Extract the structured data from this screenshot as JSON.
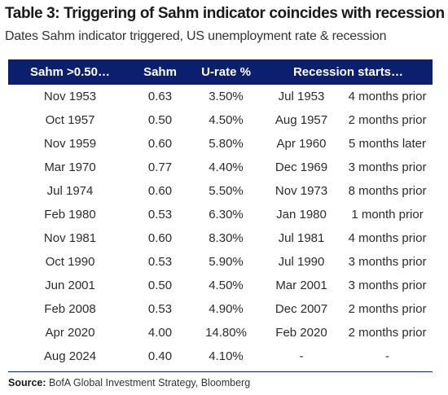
{
  "title": "Table 3: Triggering of Sahm indicator coincides with recession",
  "subtitle": "Dates Sahm indicator triggered, US unemployment rate & recession",
  "table": {
    "headers": [
      "Sahm >0.50…",
      "Sahm",
      "U-rate %",
      "Recession starts…"
    ],
    "rows": [
      [
        "Nov 1953",
        "0.63",
        "3.50%",
        "Jul 1953",
        "4 months prior"
      ],
      [
        "Oct 1957",
        "0.50",
        "4.50%",
        "Aug 1957",
        "2 months prior"
      ],
      [
        "Nov 1959",
        "0.60",
        "5.80%",
        "Apr 1960",
        "5 months later"
      ],
      [
        "Mar 1970",
        "0.77",
        "4.40%",
        "Dec 1969",
        "3 months prior"
      ],
      [
        "Jul 1974",
        "0.60",
        "5.50%",
        "Nov 1973",
        "8 months prior"
      ],
      [
        "Feb 1980",
        "0.53",
        "6.30%",
        "Jan 1980",
        "1 month prior"
      ],
      [
        "Nov 1981",
        "0.60",
        "8.30%",
        "Jul 1981",
        "4 months prior"
      ],
      [
        "Oct 1990",
        "0.53",
        "5.90%",
        "Jul 1990",
        "3 months prior"
      ],
      [
        "Jun 2001",
        "0.50",
        "4.50%",
        "Mar 2001",
        "3 months prior"
      ],
      [
        "Feb 2008",
        "0.53",
        "4.90%",
        "Dec 2007",
        "2 months prior"
      ],
      [
        "Apr 2020",
        "4.00",
        "14.80%",
        "Feb 2020",
        "2 months prior"
      ],
      [
        "Aug 2024",
        "0.40",
        "4.10%",
        "-",
        "-"
      ]
    ]
  },
  "source": {
    "label": "Source:",
    "text": "BofA Global Investment Strategy, Bloomberg"
  },
  "colors": {
    "header_bg": "#0c1f6e",
    "header_text": "#ffffff"
  }
}
